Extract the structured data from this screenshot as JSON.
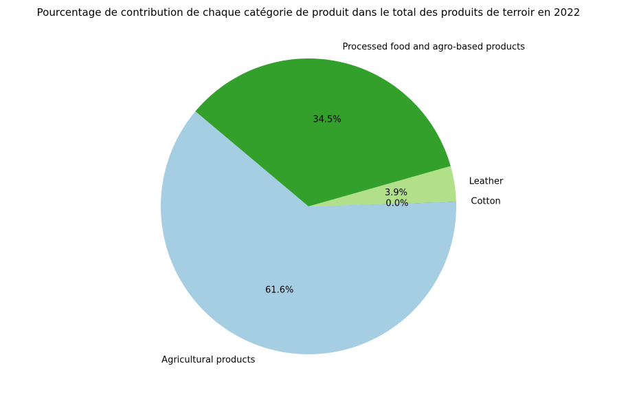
{
  "chart_data": {
    "type": "pie",
    "title": "Pourcentage de contribution de chaque catégorie de produit dans le total des produits de terroir en 2022",
    "start_angle_deg": 140,
    "direction": "counterclockwise",
    "slices": [
      {
        "label": "Agricultural products",
        "percent": 61.6,
        "pct_label": "61.6%",
        "color": "#a6cee3"
      },
      {
        "label": "Cotton",
        "percent": 0.02,
        "pct_label": "0.0%",
        "color": "#1f78b4"
      },
      {
        "label": "Leather",
        "percent": 3.9,
        "pct_label": "3.9%",
        "color": "#b2df8a"
      },
      {
        "label": "Processed food and agro-based products",
        "percent": 34.5,
        "pct_label": "34.5%",
        "color": "#33a02c"
      }
    ]
  }
}
